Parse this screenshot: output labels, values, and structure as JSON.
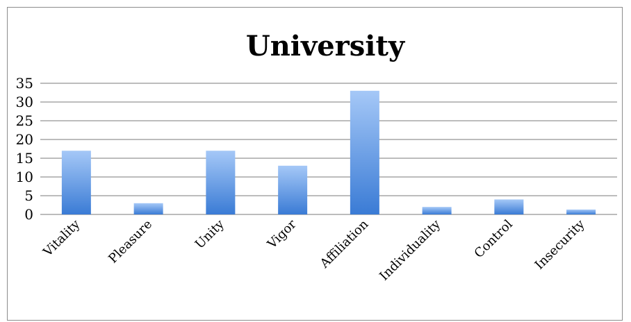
{
  "chart_data": {
    "type": "bar",
    "title": "University",
    "categories": [
      "Vitality",
      "Pleasure",
      "Unity",
      "Vigor",
      "Affiliation",
      "Individuality",
      "Control",
      "Insecurity"
    ],
    "values": [
      17,
      3,
      17,
      13,
      33,
      2,
      4,
      1.3
    ],
    "ylim": [
      0,
      35
    ],
    "yticks": [
      0,
      5,
      10,
      15,
      20,
      25,
      30,
      35
    ],
    "grid": true,
    "legend": "none",
    "colors": {
      "bar_top": "#a5c8f7",
      "bar_bottom": "#3a7bd5",
      "grid": "#7a7a7a",
      "frame": "#8c8c8c"
    }
  }
}
